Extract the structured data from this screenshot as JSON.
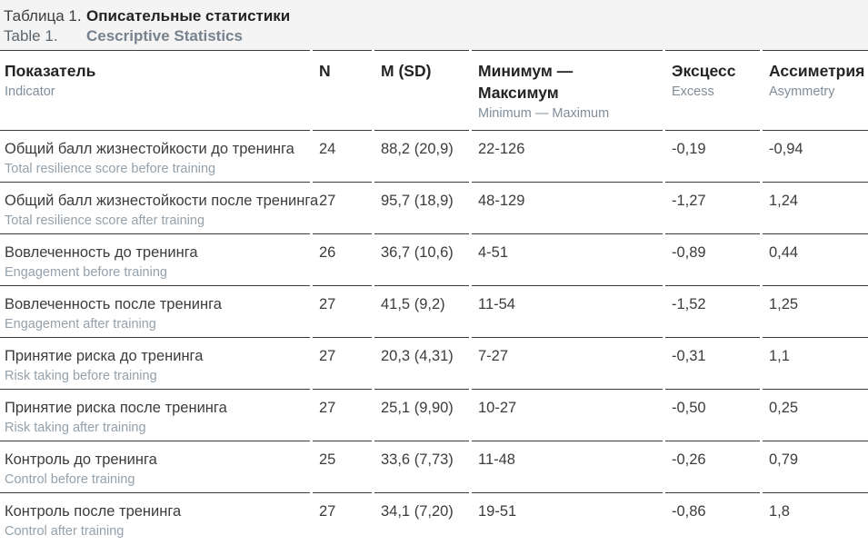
{
  "title": {
    "label_ru": "Таблица 1.",
    "text_ru": "Описательные статистики",
    "label_en": "Table 1.",
    "text_en": "Cescriptive Statistics"
  },
  "colors": {
    "title_background": "#f4f4f4",
    "rule_line": "#3b3b3b",
    "primary_text": "#3c3c3b",
    "header_bold_text": "#242322",
    "muted_translation_text": "#95a1ab",
    "header_translation_text": "#7f8e9a"
  },
  "table": {
    "columns": [
      {
        "ru": "Показатель",
        "en": "Indicator"
      },
      {
        "ru": "N",
        "en": ""
      },
      {
        "ru": "M (SD)",
        "en": ""
      },
      {
        "ru": "Минимум —\nМаксимум",
        "en": "Minimum — Maximum"
      },
      {
        "ru": "Эксцесс",
        "en": "Excess"
      },
      {
        "ru": "Ассиметрия",
        "en": "Asymmetry"
      }
    ],
    "rows": [
      {
        "ru": "Общий балл жизнестойкости до тренинга",
        "en": "Total resilience score before training",
        "n": "24",
        "m_sd": "88,2 (20,9)",
        "min_max": "22-126",
        "excess": "-0,19",
        "asymmetry": "-0,94"
      },
      {
        "ru": "Общий балл жизнестойкости после тренинга",
        "en": "Total resilience score after training",
        "n": "27",
        "m_sd": "95,7 (18,9)",
        "min_max": "48-129",
        "excess": "-1,27",
        "asymmetry": "1,24"
      },
      {
        "ru": "Вовлеченность до тренинга",
        "en": "Engagement before training",
        "n": "26",
        "m_sd": "36,7 (10,6)",
        "min_max": "4-51",
        "excess": "-0,89",
        "asymmetry": "0,44"
      },
      {
        "ru": "Вовлеченность после тренинга",
        "en": "Engagement after training",
        "n": "27",
        "m_sd": "41,5 (9,2)",
        "min_max": "11-54",
        "excess": "-1,52",
        "asymmetry": "1,25"
      },
      {
        "ru": "Принятие риска до тренинга",
        "en": "Risk taking before training",
        "n": "27",
        "m_sd": "20,3 (4,31)",
        "min_max": "7-27",
        "excess": "-0,31",
        "asymmetry": "1,1"
      },
      {
        "ru": "Принятие риска после тренинга",
        "en": "Risk taking after training",
        "n": "27",
        "m_sd": "25,1 (9,90)",
        "min_max": "10-27",
        "excess": "-0,50",
        "asymmetry": "0,25"
      },
      {
        "ru": "Контроль до тренинга",
        "en": "Control before training",
        "n": "25",
        "m_sd": "33,6 (7,73)",
        "min_max": "11-48",
        "excess": "-0,26",
        "asymmetry": "0,79"
      },
      {
        "ru": "Контроль после тренинга",
        "en": "Control after training",
        "n": "27",
        "m_sd": "34,1 (7,20)",
        "min_max": "19-51",
        "excess": "-0,86",
        "asymmetry": "1,8"
      }
    ]
  }
}
